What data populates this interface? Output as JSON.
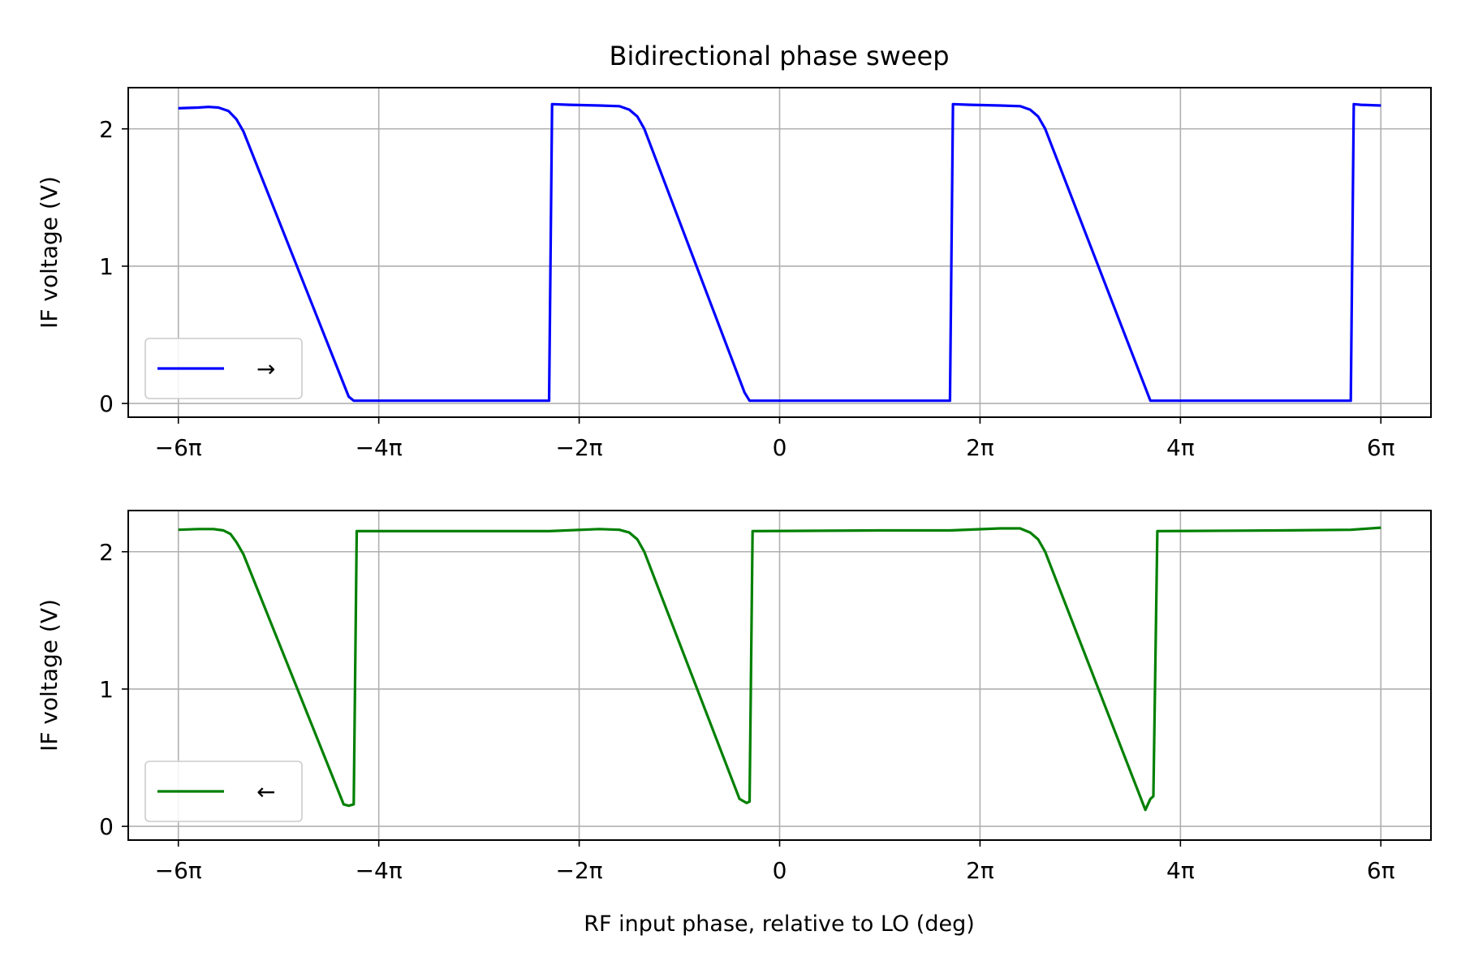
{
  "title": "Bidirectional phase sweep",
  "xlabel": "RF input phase, relative to LO (deg)",
  "colors": {
    "grid": "#b0b0b0",
    "axes": "#000000",
    "background": "#ffffff"
  },
  "chart_data": [
    {
      "type": "line",
      "title": "Bidirectional phase sweep",
      "xlabel": "",
      "ylabel": "IF voltage (V)",
      "x_unit": "pi rad",
      "xlim": [
        -6.5,
        6.5
      ],
      "ylim": [
        -0.1,
        2.3
      ],
      "xticks": [
        -6,
        -4,
        -2,
        0,
        2,
        4,
        6
      ],
      "xtick_labels": [
        "−6π",
        "−4π",
        "−2π",
        "0",
        "2π",
        "4π",
        "6π"
      ],
      "yticks": [
        0,
        1,
        2
      ],
      "ytick_labels": [
        "0",
        "1",
        "2"
      ],
      "grid": true,
      "legend_position": "lower-left",
      "series": [
        {
          "name": "→",
          "color": "#0000ff",
          "x": [
            -6.0,
            -5.8,
            -5.7,
            -5.6,
            -5.5,
            -5.42,
            -5.35,
            -4.3,
            -4.25,
            -2.3,
            -2.27,
            -2.1,
            -1.8,
            -1.6,
            -1.5,
            -1.42,
            -1.35,
            -0.35,
            -0.3,
            1.7,
            1.73,
            1.9,
            2.2,
            2.4,
            2.5,
            2.58,
            2.65,
            3.7,
            3.73,
            5.7,
            5.73,
            5.8,
            6.0
          ],
          "y": [
            2.15,
            2.155,
            2.16,
            2.155,
            2.13,
            2.07,
            1.98,
            0.05,
            0.02,
            0.02,
            2.18,
            2.175,
            2.17,
            2.165,
            2.14,
            2.09,
            2.0,
            0.08,
            0.02,
            0.02,
            2.18,
            2.175,
            2.17,
            2.165,
            2.14,
            2.09,
            2.0,
            0.02,
            0.02,
            0.02,
            2.18,
            2.175,
            2.17
          ]
        }
      ]
    },
    {
      "type": "line",
      "title": "",
      "xlabel": "RF input phase, relative to LO (deg)",
      "ylabel": "IF voltage (V)",
      "x_unit": "pi rad",
      "xlim": [
        -6.5,
        6.5
      ],
      "ylim": [
        -0.1,
        2.3
      ],
      "xticks": [
        -6,
        -4,
        -2,
        0,
        2,
        4,
        6
      ],
      "xtick_labels": [
        "−6π",
        "−4π",
        "−2π",
        "0",
        "2π",
        "4π",
        "6π"
      ],
      "yticks": [
        0,
        1,
        2
      ],
      "ytick_labels": [
        "0",
        "1",
        "2"
      ],
      "grid": true,
      "legend_position": "lower-left",
      "series": [
        {
          "name": "←",
          "color": "#008000",
          "x": [
            -6.0,
            -5.8,
            -5.65,
            -5.55,
            -5.48,
            -5.42,
            -5.35,
            -4.35,
            -4.3,
            -4.25,
            -4.22,
            -3.0,
            -2.3,
            -1.8,
            -1.6,
            -1.5,
            -1.42,
            -1.35,
            -0.4,
            -0.33,
            -0.3,
            -0.27,
            1.0,
            1.7,
            2.2,
            2.4,
            2.5,
            2.58,
            2.65,
            3.65,
            3.7,
            3.73,
            3.77,
            5.0,
            5.7,
            6.0
          ],
          "y": [
            2.16,
            2.165,
            2.165,
            2.155,
            2.13,
            2.07,
            1.98,
            0.16,
            0.15,
            0.16,
            2.15,
            2.15,
            2.15,
            2.165,
            2.16,
            2.14,
            2.09,
            2.0,
            0.2,
            0.17,
            0.18,
            2.15,
            2.155,
            2.155,
            2.17,
            2.17,
            2.14,
            2.09,
            2.0,
            0.12,
            0.2,
            0.22,
            2.15,
            2.155,
            2.16,
            2.175
          ]
        }
      ]
    }
  ]
}
